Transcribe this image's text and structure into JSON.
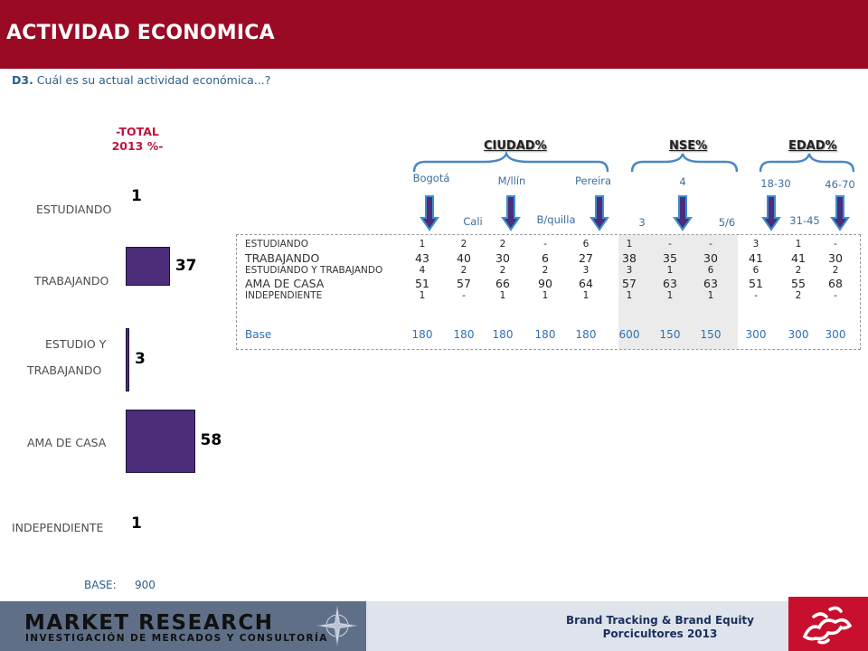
{
  "header": {
    "title": "ACTIVIDAD ECONOMICA"
  },
  "question": {
    "code": "D3.",
    "text": " Cuál es su actual actividad económica...?"
  },
  "total_header": {
    "line1": "-TOTAL",
    "line2": "2013 %-"
  },
  "chart_data": {
    "type": "bar",
    "orientation": "horizontal",
    "title": "-TOTAL 2013 %-",
    "categories": [
      "ESTUDIANDO",
      "TRABAJANDO",
      "ESTUDIO Y TRABAJANDO",
      "AMA DE CASA",
      "INDEPENDIENTE"
    ],
    "values": [
      1,
      37,
      3,
      58,
      1
    ],
    "xlim": [
      0,
      100
    ],
    "grid": false,
    "legend": "none",
    "bar_color": "#4b2d7a"
  },
  "category_labels": {
    "estudiando": "ESTUDIANDO",
    "trabajando": "TRABAJANDO",
    "estudio_l1": "ESTUDIO Y",
    "estudio_l2": "TRABAJANDO",
    "ama": "AMA DE CASA",
    "independiente": "INDEPENDIENTE"
  },
  "chart_base": {
    "label": "BASE:",
    "value": "900"
  },
  "groups": {
    "ciudad": "CIUDAD%",
    "nse": "NSE%",
    "edad": "EDAD%"
  },
  "columns": {
    "bogota": "Bogotá",
    "cali": "Cali",
    "medellin": "M/llín",
    "barranquilla": "B/quilla",
    "pereira": "Pereira",
    "nse3": "3",
    "nse4": "4",
    "nse56": "5/6",
    "edad1830": "18-30",
    "edad3145": "31-45",
    "edad4670": "46-70"
  },
  "table": {
    "rows": [
      {
        "label": "ESTUDIANDO",
        "values": [
          "1",
          "2",
          "2",
          "-",
          "6",
          "1",
          "-",
          "-",
          "3",
          "1",
          "-"
        ]
      },
      {
        "label": "TRABAJANDO",
        "values": [
          "43",
          "40",
          "30",
          "6",
          "27",
          "38",
          "35",
          "30",
          "41",
          "41",
          "30"
        ]
      },
      {
        "label": "ESTUDIANDO Y TRABAJANDO",
        "values": [
          "4",
          "2",
          "2",
          "2",
          "3",
          "3",
          "1",
          "6",
          "6",
          "2",
          "2"
        ]
      },
      {
        "label": "AMA DE CASA",
        "values": [
          "51",
          "57",
          "66",
          "90",
          "64",
          "57",
          "63",
          "63",
          "51",
          "55",
          "68"
        ]
      },
      {
        "label": "INDEPENDIENTE",
        "values": [
          "1",
          "-",
          "1",
          "1",
          "1",
          "1",
          "1",
          "1",
          "-",
          "2",
          "-"
        ]
      }
    ],
    "base": {
      "label": "Base",
      "values": [
        "180",
        "180",
        "180",
        "180",
        "180",
        "600",
        "150",
        "150",
        "300",
        "300",
        "300"
      ]
    }
  },
  "footer": {
    "logo_main": "MARKET RESEARCH",
    "logo_sub": "INVESTIGACIÓN DE MERCADOS Y CONSULTORÍA",
    "brand_line1": "Brand Tracking & Brand Equity",
    "brand_line2": "Porcicultores 2013"
  },
  "colors": {
    "header_bg": "#9b0a25",
    "bar": "#4b2d7a",
    "accent_red": "#c1133c",
    "text_blue": "#2c5f8c",
    "arrow_fill": "#4b2d7a",
    "arrow_stroke": "#3a8fd0"
  }
}
